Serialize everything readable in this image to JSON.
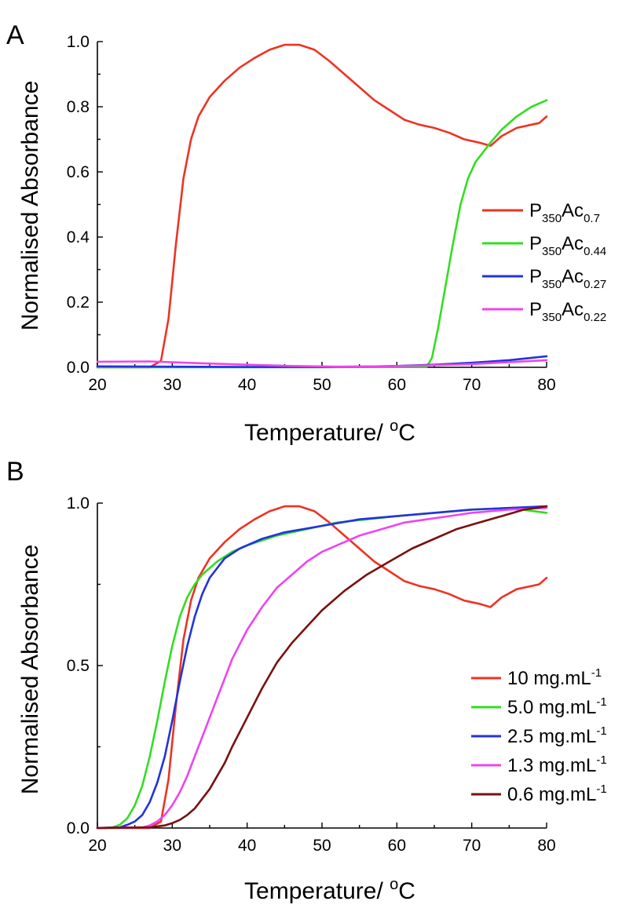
{
  "figure": {
    "panel_a_label": "A",
    "panel_b_label": "B"
  },
  "chart_data": [
    {
      "type": "line",
      "panel": "A",
      "xlabel": "Temperature/ °C",
      "xlabel_main": "Temperature/ ",
      "xlabel_sup": "o",
      "xlabel_unit": "C",
      "ylabel": "Normalised Absorbance",
      "xlim": [
        20,
        80
      ],
      "ylim": [
        0,
        1.0
      ],
      "xticks": [
        20,
        30,
        40,
        50,
        60,
        70,
        80
      ],
      "yticks": [
        0.0,
        0.2,
        0.4,
        0.6,
        0.8,
        1.0
      ],
      "ytick_labels": [
        "0.0",
        "0.2",
        "0.4",
        "0.6",
        "0.8",
        "1.0"
      ],
      "legend_position": "right",
      "series": [
        {
          "name": "P350Ac0.7",
          "label_base": "P",
          "label_sub1": "350",
          "label_mid": "Ac",
          "label_sub2": "0.7",
          "color": "#ee3322",
          "x": [
            20,
            27,
            28.5,
            29.5,
            30.5,
            31.5,
            32.5,
            33.5,
            35,
            37,
            39,
            41,
            43,
            45,
            47,
            49,
            51,
            53,
            55,
            57,
            59,
            61,
            63,
            65,
            67,
            69,
            71,
            72.5,
            74,
            76,
            78,
            79,
            80
          ],
          "y": [
            0,
            0,
            0.02,
            0.15,
            0.38,
            0.58,
            0.7,
            0.77,
            0.83,
            0.88,
            0.92,
            0.95,
            0.975,
            0.99,
            0.99,
            0.975,
            0.94,
            0.9,
            0.86,
            0.82,
            0.79,
            0.76,
            0.745,
            0.735,
            0.72,
            0.7,
            0.69,
            0.68,
            0.71,
            0.735,
            0.745,
            0.75,
            0.77
          ]
        },
        {
          "name": "P350Ac0.44",
          "label_base": "P",
          "label_sub1": "350",
          "label_mid": "Ac",
          "label_sub2": "0.44",
          "color": "#33dd22",
          "x": [
            20,
            50,
            64,
            64.7,
            65.5,
            66.5,
            67.5,
            68.5,
            69.5,
            70.5,
            71.5,
            72.5,
            74,
            76,
            78,
            80
          ],
          "y": [
            0,
            0,
            0.002,
            0.03,
            0.12,
            0.25,
            0.38,
            0.5,
            0.58,
            0.63,
            0.66,
            0.69,
            0.73,
            0.77,
            0.8,
            0.82
          ]
        },
        {
          "name": "P350Ac0.27",
          "label_base": "P",
          "label_sub1": "350",
          "label_mid": "Ac",
          "label_sub2": "0.27",
          "color": "#2233dd",
          "x": [
            20,
            30,
            40,
            50,
            55,
            60,
            65,
            70,
            75,
            80
          ],
          "y": [
            0.003,
            0.002,
            0.001,
            0.001,
            0.002,
            0.004,
            0.008,
            0.014,
            0.022,
            0.034
          ]
        },
        {
          "name": "P350Ac0.22",
          "label_base": "P",
          "label_sub1": "350",
          "label_mid": "Ac",
          "label_sub2": "0.22",
          "color": "#ee44ee",
          "x": [
            20,
            27,
            33,
            40,
            46,
            52,
            58,
            64,
            70,
            75,
            80
          ],
          "y": [
            0.017,
            0.018,
            0.013,
            0.008,
            0.004,
            0.002,
            0.003,
            0.006,
            0.01,
            0.016,
            0.022
          ]
        }
      ]
    },
    {
      "type": "line",
      "panel": "B",
      "xlabel": "Temperature/ °C",
      "xlabel_main": "Temperature/ ",
      "xlabel_sup": "o",
      "xlabel_unit": "C",
      "ylabel": "Normalised Absorbance",
      "xlim": [
        20,
        80
      ],
      "ylim": [
        0,
        1.0
      ],
      "xticks": [
        20,
        30,
        40,
        50,
        60,
        70,
        80
      ],
      "yticks": [
        0.0,
        0.5,
        1.0
      ],
      "ytick_labels": [
        "0.0",
        "0.5",
        "1.0"
      ],
      "legend_position": "right",
      "series": [
        {
          "name": "10 mg.mL-1",
          "label_base": "10 mg.mL",
          "label_sup": "-1",
          "color": "#ee3322",
          "x": [
            20,
            27,
            28.5,
            29.5,
            30.5,
            31.5,
            32.5,
            33.5,
            35,
            37,
            39,
            41,
            43,
            45,
            47,
            49,
            51,
            53,
            55,
            57,
            59,
            61,
            63,
            65,
            67,
            69,
            71,
            72.5,
            74,
            76,
            78,
            79,
            80
          ],
          "y": [
            0,
            0,
            0.02,
            0.15,
            0.38,
            0.58,
            0.7,
            0.77,
            0.83,
            0.88,
            0.92,
            0.95,
            0.975,
            0.99,
            0.99,
            0.975,
            0.94,
            0.9,
            0.86,
            0.82,
            0.79,
            0.76,
            0.745,
            0.735,
            0.72,
            0.7,
            0.69,
            0.68,
            0.71,
            0.735,
            0.745,
            0.75,
            0.77
          ]
        },
        {
          "name": "5.0 mg.mL-1",
          "label_base": "5.0 mg.mL",
          "label_sup": "-1",
          "color": "#33dd22",
          "x": [
            20,
            22,
            23,
            24,
            25,
            26,
            27,
            28,
            29,
            30,
            31,
            32,
            33,
            34,
            36,
            38,
            40,
            44,
            48,
            52,
            56,
            60,
            65,
            70,
            75,
            80
          ],
          "y": [
            0,
            0.002,
            0.01,
            0.03,
            0.07,
            0.13,
            0.22,
            0.33,
            0.45,
            0.56,
            0.65,
            0.71,
            0.75,
            0.78,
            0.82,
            0.85,
            0.87,
            0.9,
            0.92,
            0.94,
            0.95,
            0.96,
            0.97,
            0.98,
            0.985,
            0.97
          ]
        },
        {
          "name": "2.5 mg.mL-1",
          "label_base": "2.5 mg.mL",
          "label_sup": "-1",
          "color": "#2233dd",
          "x": [
            20,
            23,
            24,
            25,
            26,
            27,
            28,
            29,
            30,
            31,
            32,
            33,
            34,
            35,
            37,
            39,
            42,
            45,
            50,
            55,
            60,
            65,
            70,
            75,
            80
          ],
          "y": [
            0,
            0.002,
            0.01,
            0.02,
            0.04,
            0.08,
            0.14,
            0.22,
            0.33,
            0.45,
            0.56,
            0.65,
            0.72,
            0.77,
            0.83,
            0.86,
            0.89,
            0.91,
            0.93,
            0.95,
            0.96,
            0.97,
            0.98,
            0.985,
            0.99
          ]
        },
        {
          "name": "1.3 mg.mL-1",
          "label_base": "1.3 mg.mL",
          "label_sup": "-1",
          "color": "#ee44ee",
          "x": [
            20,
            26,
            27,
            28,
            29,
            30,
            31,
            32,
            33,
            34,
            35,
            36,
            37,
            38,
            40,
            42,
            44,
            46,
            48,
            50,
            52,
            55,
            58,
            61,
            64,
            67,
            70,
            75,
            80
          ],
          "y": [
            0,
            0.002,
            0.008,
            0.02,
            0.04,
            0.07,
            0.11,
            0.16,
            0.22,
            0.28,
            0.34,
            0.4,
            0.46,
            0.52,
            0.61,
            0.68,
            0.74,
            0.78,
            0.82,
            0.85,
            0.87,
            0.9,
            0.92,
            0.94,
            0.95,
            0.96,
            0.97,
            0.98,
            0.985
          ]
        },
        {
          "name": "0.6 mg.mL-1",
          "label_base": "0.6 mg.mL",
          "label_sup": "-1",
          "color": "#7a1010",
          "x": [
            20,
            27,
            29,
            30,
            31,
            32,
            33,
            34,
            35,
            36,
            37,
            38,
            40,
            42,
            44,
            46,
            48,
            50,
            53,
            56,
            59,
            62,
            65,
            68,
            71,
            74,
            77,
            80
          ],
          "y": [
            0,
            0.002,
            0.008,
            0.015,
            0.025,
            0.04,
            0.06,
            0.09,
            0.12,
            0.16,
            0.2,
            0.25,
            0.34,
            0.43,
            0.51,
            0.57,
            0.62,
            0.67,
            0.73,
            0.78,
            0.82,
            0.86,
            0.89,
            0.92,
            0.94,
            0.96,
            0.98,
            0.99
          ]
        }
      ]
    }
  ]
}
